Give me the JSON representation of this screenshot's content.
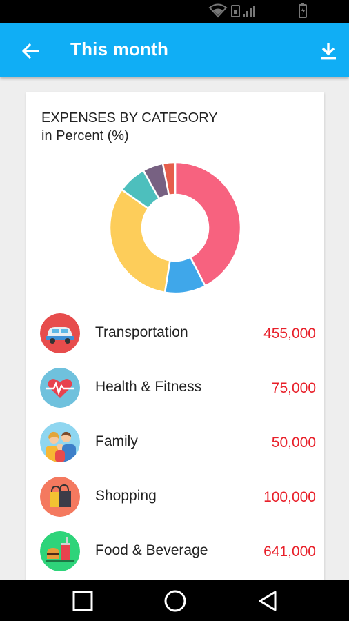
{
  "status_bar": {
    "icons": [
      "wifi-icon",
      "sim-icon",
      "signal-icon",
      "battery-icon"
    ]
  },
  "app_bar": {
    "title": "This month",
    "back_icon": "arrow-back-icon",
    "download_icon": "download-icon",
    "background_color": "#10aef5"
  },
  "card": {
    "title": "EXPENSES BY CATEGORY",
    "subtitle": "in Percent (%)"
  },
  "chart_data": {
    "type": "pie",
    "title": "EXPENSES BY CATEGORY",
    "subtitle": "in Percent (%)",
    "donut": true,
    "slices": [
      {
        "value": 42,
        "color": "#f7627f"
      },
      {
        "value": 10,
        "color": "#3fa7ea"
      },
      {
        "value": 32,
        "color": "#fdcd5a"
      },
      {
        "value": 7,
        "color": "#4dbfbd"
      },
      {
        "value": 5,
        "color": "#776182"
      },
      {
        "value": 3,
        "color": "#e65e4c"
      }
    ]
  },
  "categories": [
    {
      "name": "Transportation",
      "amount": "455,000",
      "icon": "car-icon",
      "icon_bg": "#e74c4c"
    },
    {
      "name": "Health & Fitness",
      "amount": "75,000",
      "icon": "heart-pulse-icon",
      "icon_bg": "#6fc1dd"
    },
    {
      "name": "Family",
      "amount": "50,000",
      "icon": "family-icon",
      "icon_bg": "#8fd6f0"
    },
    {
      "name": "Shopping",
      "amount": "100,000",
      "icon": "shopping-bag-icon",
      "icon_bg": "#f4795f"
    },
    {
      "name": "Food & Beverage",
      "amount": "641,000",
      "icon": "food-icon",
      "icon_bg": "#2ed47a"
    }
  ],
  "nav_bar": {
    "icons": [
      "recents-square-icon",
      "home-circle-icon",
      "back-triangle-icon"
    ]
  }
}
